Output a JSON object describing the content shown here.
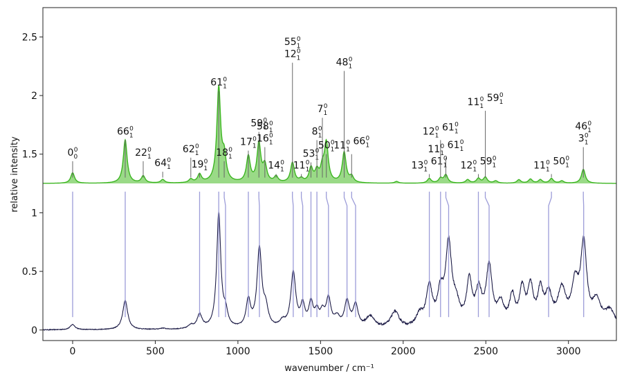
{
  "chart_data": {
    "type": "line",
    "xlabel": "wavenumber / cm⁻¹",
    "ylabel": "relative intensity",
    "xlim": [
      -180,
      3290
    ],
    "ylim": [
      -0.09,
      2.75
    ],
    "x_ticks": [
      0,
      500,
      1000,
      1500,
      2000,
      2500,
      3000
    ],
    "y_ticks": [
      0,
      0.5,
      1,
      1.5,
      2,
      2.5
    ],
    "y_tick_labels": [
      "0",
      "0.5",
      "1",
      "1.5",
      "2",
      "2.5"
    ],
    "grid": false,
    "colors": {
      "computed": "#3cb521",
      "computed_fill": "#8fd67a",
      "experimental": "#1b1a45",
      "connector": "#9c9cd8",
      "label_stick": "#666666"
    },
    "series": [
      {
        "style": "filled-stick-spectrum",
        "baseline": 1.25,
        "linewidth_cm1": 14,
        "peaks": [
          {
            "x": 0,
            "y": 0.09
          },
          {
            "x": 318,
            "y": 0.37
          },
          {
            "x": 427,
            "y": 0.06
          },
          {
            "x": 545,
            "y": 0.03
          },
          {
            "x": 715,
            "y": 0.03
          },
          {
            "x": 768,
            "y": 0.07
          },
          {
            "x": 884,
            "y": 0.8
          },
          {
            "x": 917,
            "y": 0.2
          },
          {
            "x": 1063,
            "y": 0.22
          },
          {
            "x": 1127,
            "y": 0.33
          },
          {
            "x": 1163,
            "y": 0.14
          },
          {
            "x": 1231,
            "y": 0.05
          },
          {
            "x": 1330,
            "y": 0.17
          },
          {
            "x": 1384,
            "y": 0.03
          },
          {
            "x": 1442,
            "y": 0.12
          },
          {
            "x": 1478,
            "y": 0.09
          },
          {
            "x": 1511,
            "y": 0.11
          },
          {
            "x": 1535,
            "y": 0.33
          },
          {
            "x": 1643,
            "y": 0.26
          },
          {
            "x": 1688,
            "y": 0.05
          },
          {
            "x": 1960,
            "y": 0.015
          },
          {
            "x": 2158,
            "y": 0.04
          },
          {
            "x": 2226,
            "y": 0.04
          },
          {
            "x": 2258,
            "y": 0.07
          },
          {
            "x": 2390,
            "y": 0.03
          },
          {
            "x": 2455,
            "y": 0.04
          },
          {
            "x": 2497,
            "y": 0.05
          },
          {
            "x": 2560,
            "y": 0.02
          },
          {
            "x": 2700,
            "y": 0.03
          },
          {
            "x": 2770,
            "y": 0.035
          },
          {
            "x": 2830,
            "y": 0.03
          },
          {
            "x": 2897,
            "y": 0.04
          },
          {
            "x": 2960,
            "y": 0.02
          },
          {
            "x": 3090,
            "y": 0.12
          }
        ]
      },
      {
        "style": "noisy-experimental-spectrum",
        "baseline": 0.0,
        "peaks": [
          {
            "x": 0,
            "y": 0.045,
            "w": 18
          },
          {
            "x": 318,
            "y": 0.25,
            "w": 18
          },
          {
            "x": 545,
            "y": 0.01,
            "w": 20
          },
          {
            "x": 715,
            "y": 0.03,
            "w": 18
          },
          {
            "x": 768,
            "y": 0.12,
            "w": 18
          },
          {
            "x": 884,
            "y": 0.98,
            "w": 15
          },
          {
            "x": 925,
            "y": 0.12,
            "w": 16
          },
          {
            "x": 1063,
            "y": 0.23,
            "w": 16
          },
          {
            "x": 1130,
            "y": 0.67,
            "w": 17
          },
          {
            "x": 1168,
            "y": 0.15,
            "w": 18
          },
          {
            "x": 1270,
            "y": 0.05,
            "w": 20
          },
          {
            "x": 1335,
            "y": 0.47,
            "w": 18
          },
          {
            "x": 1392,
            "y": 0.18,
            "w": 16
          },
          {
            "x": 1442,
            "y": 0.2,
            "w": 16
          },
          {
            "x": 1478,
            "y": 0.12,
            "w": 16
          },
          {
            "x": 1511,
            "y": 0.11,
            "w": 16
          },
          {
            "x": 1548,
            "y": 0.24,
            "w": 18
          },
          {
            "x": 1600,
            "y": 0.08,
            "w": 20
          },
          {
            "x": 1660,
            "y": 0.22,
            "w": 18
          },
          {
            "x": 1712,
            "y": 0.19,
            "w": 18
          },
          {
            "x": 1800,
            "y": 0.1,
            "w": 30
          },
          {
            "x": 1950,
            "y": 0.14,
            "w": 30
          },
          {
            "x": 2100,
            "y": 0.1,
            "w": 25
          },
          {
            "x": 2158,
            "y": 0.33,
            "w": 22
          },
          {
            "x": 2226,
            "y": 0.26,
            "w": 22
          },
          {
            "x": 2275,
            "y": 0.68,
            "w": 22
          },
          {
            "x": 2320,
            "y": 0.16,
            "w": 25
          },
          {
            "x": 2400,
            "y": 0.37,
            "w": 20
          },
          {
            "x": 2457,
            "y": 0.28,
            "w": 22
          },
          {
            "x": 2520,
            "y": 0.5,
            "w": 22
          },
          {
            "x": 2590,
            "y": 0.18,
            "w": 25
          },
          {
            "x": 2660,
            "y": 0.24,
            "w": 20
          },
          {
            "x": 2720,
            "y": 0.3,
            "w": 20
          },
          {
            "x": 2770,
            "y": 0.32,
            "w": 20
          },
          {
            "x": 2830,
            "y": 0.28,
            "w": 20
          },
          {
            "x": 2880,
            "y": 0.25,
            "w": 25
          },
          {
            "x": 2960,
            "y": 0.3,
            "w": 30
          },
          {
            "x": 3040,
            "y": 0.33,
            "w": 25
          },
          {
            "x": 3092,
            "y": 0.68,
            "w": 22
          },
          {
            "x": 3170,
            "y": 0.2,
            "w": 30
          },
          {
            "x": 3250,
            "y": 0.14,
            "w": 40
          }
        ]
      }
    ],
    "connectors": [
      {
        "x_top": 0,
        "x_bottom": 0
      },
      {
        "x_top": 318,
        "x_bottom": 318
      },
      {
        "x_top": 768,
        "x_bottom": 768
      },
      {
        "x_top": 884,
        "x_bottom": 884
      },
      {
        "x_top": 917,
        "x_bottom": 925
      },
      {
        "x_top": 1063,
        "x_bottom": 1063
      },
      {
        "x_top": 1127,
        "x_bottom": 1130
      },
      {
        "x_top": 1330,
        "x_bottom": 1335
      },
      {
        "x_top": 1384,
        "x_bottom": 1392
      },
      {
        "x_top": 1442,
        "x_bottom": 1442
      },
      {
        "x_top": 1478,
        "x_bottom": 1478
      },
      {
        "x_top": 1535,
        "x_bottom": 1548
      },
      {
        "x_top": 1643,
        "x_bottom": 1660
      },
      {
        "x_top": 1688,
        "x_bottom": 1712
      },
      {
        "x_top": 2158,
        "x_bottom": 2158
      },
      {
        "x_top": 2226,
        "x_bottom": 2226
      },
      {
        "x_top": 2258,
        "x_bottom": 2275
      },
      {
        "x_top": 2455,
        "x_bottom": 2455
      },
      {
        "x_top": 2497,
        "x_bottom": 2520
      },
      {
        "x_top": 2897,
        "x_bottom": 2880
      },
      {
        "x_top": 3090,
        "x_bottom": 3092
      }
    ],
    "peak_labels": [
      {
        "x": 0,
        "stick_top": 1.44,
        "lines": [
          [
            [
              "0",
              "0",
              "0"
            ]
          ]
        ]
      },
      {
        "x": 318,
        "stick_top": 1.62,
        "lines": [
          [
            [
              "66",
              "1",
              "0"
            ]
          ]
        ]
      },
      {
        "x": 427,
        "stick_top": 1.44,
        "lines": [
          [
            [
              "22",
              "1",
              "0"
            ]
          ]
        ]
      },
      {
        "x": 545,
        "stick_top": 1.35,
        "lines": [
          [
            [
              "64",
              "1",
              "0"
            ]
          ]
        ]
      },
      {
        "x": 715,
        "stick_top": 1.47,
        "lines": [
          [
            [
              "62",
              "1",
              "0"
            ]
          ]
        ]
      },
      {
        "x": 768,
        "stick_top": 1.34,
        "lines": [
          [
            [
              "19",
              "1",
              "0"
            ]
          ]
        ]
      },
      {
        "x": 884,
        "stick_top": 2.04,
        "lines": [
          [
            [
              "61",
              "1",
              "0"
            ]
          ]
        ]
      },
      {
        "x": 917,
        "stick_top": 1.44,
        "lines": [
          [
            [
              "18",
              "1",
              "0"
            ]
          ]
        ]
      },
      {
        "x": 1063,
        "stick_top": 1.53,
        "lines": [
          [
            [
              "17",
              "1",
              "0"
            ]
          ]
        ]
      },
      {
        "x": 1127,
        "stick_top": 1.69,
        "lines": [
          [
            [
              "59",
              "1",
              "0"
            ]
          ]
        ]
      },
      {
        "x": 1163,
        "stick_top": 1.56,
        "lines": [
          [
            [
              "58",
              "1",
              "0"
            ]
          ],
          [
            [
              "16",
              "1",
              "0"
            ]
          ]
        ]
      },
      {
        "x": 1231,
        "stick_top": 1.33,
        "lines": [
          [
            [
              "14",
              "1",
              "0"
            ]
          ]
        ]
      },
      {
        "x": 1330,
        "stick_top": 2.28,
        "lines": [
          [
            [
              "55",
              "1",
              "0"
            ]
          ],
          [
            [
              "12",
              "1",
              "0"
            ]
          ]
        ]
      },
      {
        "x": 1384,
        "stick_top": 1.33,
        "lines": [
          [
            [
              "11",
              "1",
              "0"
            ]
          ]
        ]
      },
      {
        "x": 1442,
        "stick_top": 1.43,
        "lines": [
          [
            [
              "53",
              "1",
              "0"
            ]
          ]
        ]
      },
      {
        "x": 1478,
        "stick_top": 1.62,
        "lines": [
          [
            [
              "8",
              "1",
              "0"
            ]
          ]
        ]
      },
      {
        "x": 1511,
        "stick_top": 1.81,
        "lines": [
          [
            [
              "7",
              "1",
              "0"
            ]
          ]
        ]
      },
      {
        "x": 1535,
        "stick_top": 1.5,
        "lines": [
          [
            [
              "50",
              "1",
              "0"
            ]
          ]
        ]
      },
      {
        "x": 1643,
        "stick_top": 2.21,
        "lines": [
          [
            [
              "48",
              "1",
              "0"
            ]
          ]
        ]
      },
      {
        "x": 1688,
        "stick_top": 1.5,
        "lines": [
          [
            [
              "11",
              "1",
              "0"
            ],
            [
              "66",
              "1",
              "0"
            ]
          ]
        ]
      },
      {
        "x": 2158,
        "stick_top": 1.33,
        "lines": [
          [
            [
              "13",
              "1",
              "0"
            ],
            [
              "61",
              "1",
              "0"
            ]
          ]
        ]
      },
      {
        "x": 2226,
        "stick_top": 1.62,
        "lines": [
          [
            [
              "12",
              "1",
              "0"
            ],
            [
              "61",
              "1",
              "0"
            ]
          ]
        ]
      },
      {
        "x": 2258,
        "stick_top": 1.47,
        "lines": [
          [
            [
              "11",
              "1",
              "0"
            ],
            [
              "61",
              "1",
              "0"
            ]
          ]
        ]
      },
      {
        "x": 2455,
        "stick_top": 1.33,
        "lines": [
          [
            [
              "12",
              "1",
              "0"
            ],
            [
              "59",
              "1",
              "0"
            ]
          ]
        ]
      },
      {
        "x": 2497,
        "stick_top": 1.87,
        "lines": [
          [
            [
              "11",
              "1",
              "0"
            ],
            [
              "59",
              "1",
              "0"
            ]
          ]
        ]
      },
      {
        "x": 2897,
        "stick_top": 1.33,
        "lines": [
          [
            [
              "11",
              "1",
              "0"
            ],
            [
              "50",
              "1",
              "0"
            ]
          ]
        ]
      },
      {
        "x": 3090,
        "stick_top": 1.56,
        "lines": [
          [
            [
              "46",
              "1",
              "0"
            ]
          ],
          [
            [
              "3",
              "1",
              "0"
            ]
          ]
        ]
      }
    ]
  }
}
